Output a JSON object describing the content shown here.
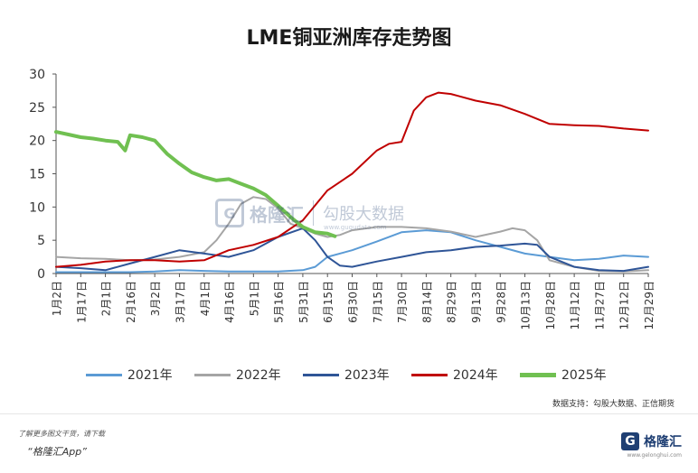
{
  "chart_data": {
    "type": "line",
    "title": "LME铜亚洲库存走势图",
    "xlabel": "",
    "ylabel": "",
    "ylim": [
      0,
      30
    ],
    "yticks": [
      0,
      5,
      10,
      15,
      20,
      25,
      30
    ],
    "grid": false,
    "legend_position": "bottom",
    "x_tick_labels": [
      "1月2日",
      "1月17日",
      "2月1日",
      "2月16日",
      "3月2日",
      "3月17日",
      "4月1日",
      "4月16日",
      "5月1日",
      "5月16日",
      "5月31日",
      "6月15日",
      "6月30日",
      "7月15日",
      "7月30日",
      "8月14日",
      "8月29日",
      "9月13日",
      "9月28日",
      "10月13日",
      "10月28日",
      "11月12日",
      "11月27日",
      "12月12日",
      "12月29日"
    ],
    "series": [
      {
        "name": "2021年",
        "color": "#5b9bd5",
        "width": 2,
        "x": [
          0,
          1,
          2,
          3,
          4,
          5,
          6,
          7,
          8,
          9,
          10,
          10.5,
          11,
          12,
          13,
          14,
          15,
          16,
          17,
          18,
          19,
          20,
          21,
          22,
          23,
          24
        ],
        "y": [
          0.2,
          0.2,
          0.2,
          0.2,
          0.3,
          0.5,
          0.4,
          0.3,
          0.3,
          0.3,
          0.5,
          1.0,
          2.5,
          3.5,
          4.8,
          6.2,
          6.5,
          6.2,
          5.0,
          4.0,
          3.0,
          2.5,
          2.0,
          2.2,
          2.7,
          2.5
        ]
      },
      {
        "name": "2022年",
        "color": "#a5a5a5",
        "width": 2,
        "x": [
          0,
          1,
          2,
          3,
          4,
          5,
          6,
          6.5,
          7,
          7.5,
          8,
          8.5,
          9,
          9.5,
          10,
          10.5,
          11,
          11.5,
          12,
          13,
          14,
          15,
          16,
          17,
          18,
          18.5,
          19,
          19.5,
          20,
          21,
          22,
          23,
          24
        ],
        "y": [
          2.5,
          2.3,
          2.2,
          2.0,
          2.1,
          2.5,
          3.2,
          5.0,
          7.5,
          10.5,
          11.5,
          11.2,
          9.8,
          7.5,
          6.8,
          6.0,
          5.5,
          5.8,
          6.5,
          7.0,
          7.0,
          6.8,
          6.3,
          5.5,
          6.3,
          6.8,
          6.5,
          5.0,
          2.0,
          1.0,
          0.4,
          0.3,
          0.5
        ]
      },
      {
        "name": "2023年",
        "color": "#2f5597",
        "width": 2,
        "x": [
          0,
          1,
          2,
          3,
          4,
          5,
          6,
          7,
          8,
          9,
          10,
          10.5,
          11,
          11.5,
          12,
          13,
          14,
          15,
          16,
          17,
          18,
          19,
          19.5,
          20,
          21,
          22,
          23,
          24
        ],
        "y": [
          1.0,
          0.8,
          0.5,
          1.5,
          2.5,
          3.5,
          3.0,
          2.5,
          3.5,
          5.5,
          6.8,
          5.0,
          2.5,
          1.2,
          1.0,
          1.8,
          2.5,
          3.2,
          3.5,
          4.0,
          4.2,
          4.5,
          4.3,
          2.5,
          1.0,
          0.5,
          0.4,
          1.0
        ]
      },
      {
        "name": "2024年",
        "color": "#c00000",
        "width": 2,
        "x": [
          0,
          1,
          2,
          3,
          4,
          5,
          6,
          7,
          8,
          9,
          10,
          11,
          12,
          13,
          13.5,
          14,
          14.5,
          15,
          15.5,
          16,
          17,
          18,
          19,
          20,
          21,
          22,
          23,
          24
        ],
        "y": [
          1.0,
          1.3,
          1.8,
          2.0,
          2.0,
          1.8,
          2.0,
          3.5,
          4.3,
          5.5,
          8.0,
          12.5,
          15.0,
          18.5,
          19.5,
          19.8,
          24.5,
          26.5,
          27.2,
          27.0,
          26.0,
          25.3,
          24.0,
          22.5,
          22.3,
          22.2,
          21.8,
          21.5
        ]
      },
      {
        "name": "2025年",
        "color": "#70c051",
        "width": 4,
        "x": [
          0,
          0.5,
          1,
          1.5,
          2,
          2.5,
          2.8,
          3,
          3.5,
          4,
          4.5,
          5,
          5.5,
          6,
          6.5,
          7,
          7.5,
          8,
          8.5,
          9,
          9.5,
          10,
          10.5,
          11,
          11.3
        ],
        "y": [
          21.3,
          20.9,
          20.5,
          20.3,
          20.0,
          19.8,
          18.5,
          20.8,
          20.5,
          20.0,
          18.0,
          16.5,
          15.2,
          14.5,
          14.0,
          14.2,
          13.5,
          12.8,
          11.8,
          10.2,
          8.5,
          7.0,
          6.2,
          6.0,
          5.6
        ]
      }
    ]
  },
  "watermark": {
    "brand": "格隆汇",
    "partner": "勾股大数据",
    "url": "www.gugudata.com"
  },
  "source_text": "数据支持：勾股大数据、正信期货",
  "footer": {
    "note": "了解更多图文干货，请下载",
    "app_name": "“格隆汇App”",
    "logo_mark": "G",
    "logo_text": "格隆汇",
    "logo_url": "www.gelonghui.com"
  }
}
